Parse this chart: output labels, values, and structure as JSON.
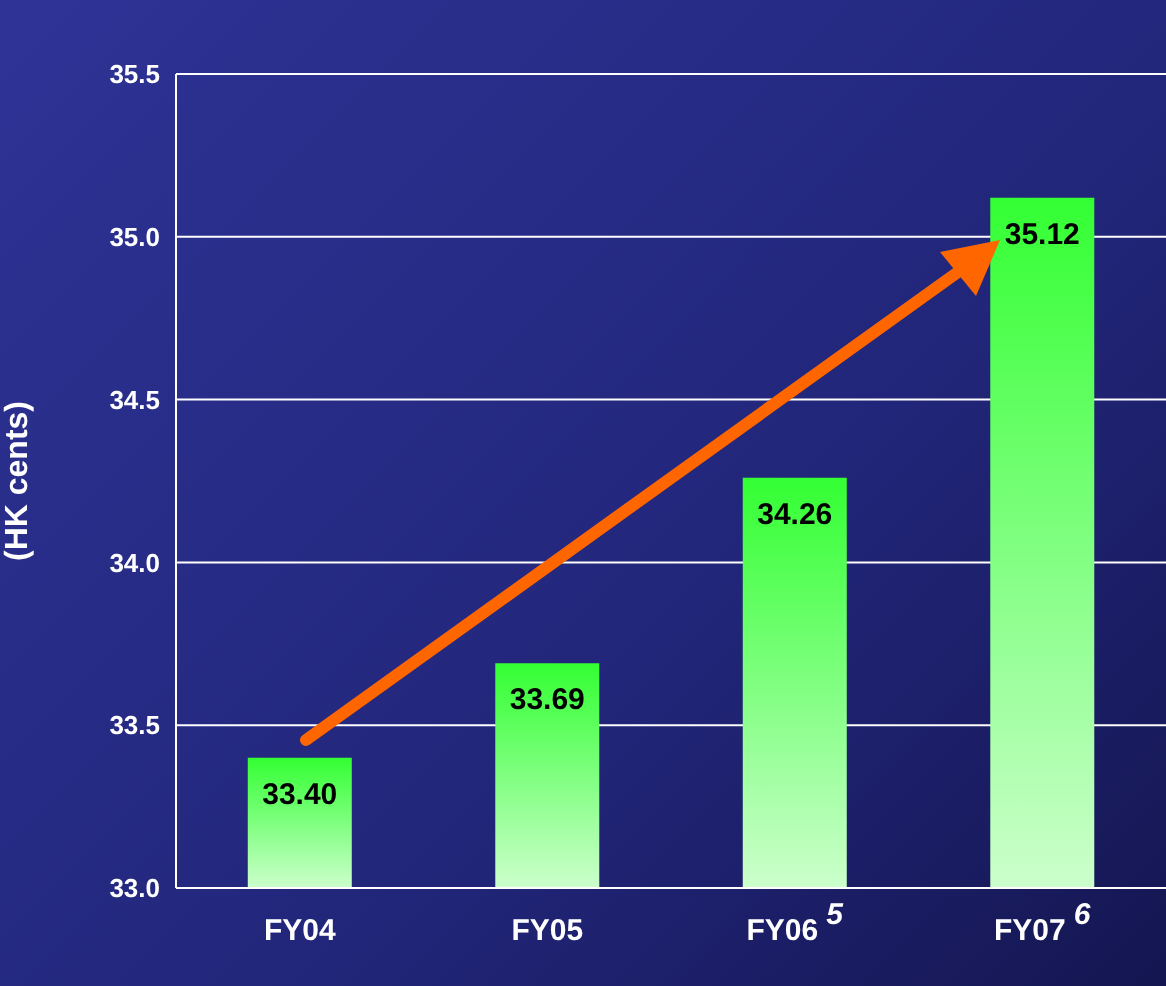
{
  "chart_data": {
    "type": "bar",
    "ylabel": "(HK cents)",
    "categories": [
      "FY04",
      "FY05",
      "FY06$^{5}$",
      "FY07$^{6}$"
    ],
    "values": [
      33.4,
      33.69,
      34.26,
      35.12
    ],
    "color": "#33ff33",
    "ylim": [
      33,
      35.5
    ],
    "yticks": [
      {
        "value": 33,
        "label": "33.0"
      },
      {
        "value": 33.5,
        "label": "33.5"
      },
      {
        "value": 34,
        "label": "34.0"
      },
      {
        "value": 34.5,
        "label": "34.5"
      },
      {
        "value": 35,
        "label": "35.0"
      },
      {
        "value": 35.5,
        "label": "35.5"
      }
    ],
    "value_labels": [
      "33.40",
      "33.69",
      "34.26",
      "35.12"
    ],
    "grid": "y"
  }
}
